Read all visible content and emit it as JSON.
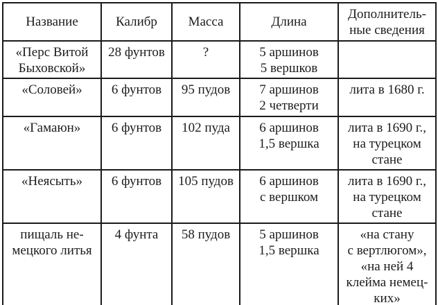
{
  "table": {
    "title_semantic": "Таблица пищалей (орудий)",
    "colors": {
      "border": "#1a1a1a",
      "text": "#1c1c1c",
      "background": "#ffffff"
    },
    "headers": [
      "Название",
      "Калибр",
      "Масса",
      "Длина",
      "Дополнитель-\nные сведения"
    ],
    "rows": [
      {
        "cells": [
          "«Перс Витой\nБыховской»",
          "28 фунтов",
          "?",
          "5 аршинов\n5 вершков",
          ""
        ]
      },
      {
        "cells": [
          "«Соловей»",
          "6 фунтов",
          "95 пудов",
          "7 аршинов\n2 четверти",
          "лита в 1680 г."
        ]
      },
      {
        "cells": [
          "«Гамаюн»",
          "6 фунтов",
          "102 пуда",
          "6 аршинов\n1,5 вершка",
          "лита в 1690 г.,\nна турецком\nстане"
        ]
      },
      {
        "cells": [
          "«Неясыть»",
          "6 фунтов",
          "105 пудов",
          "6 аршинов\nс вершком",
          "лита в 1690 г.,\nна турецком\nстане"
        ]
      },
      {
        "cells": [
          "пищаль не-\nмецкого литья",
          "4 фунта",
          "58 пудов",
          "5 аршинов\n1,5 вершка",
          "«на стану\nс вертлюгом»,\n«на ней 4\nклейма немец-\nких»"
        ]
      }
    ]
  }
}
